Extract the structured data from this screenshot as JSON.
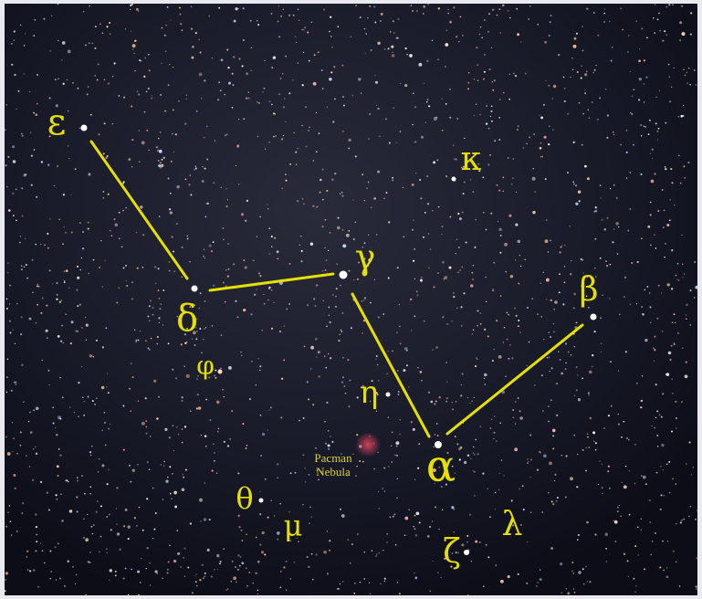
{
  "labels": [
    "ε",
    "δ",
    "γ",
    "κ",
    "β",
    "φ",
    "η",
    "α",
    "θ",
    "μ",
    "λ",
    "ζ"
  ],
  "nebula": [
    "Pacman",
    "Nebula"
  ]
}
